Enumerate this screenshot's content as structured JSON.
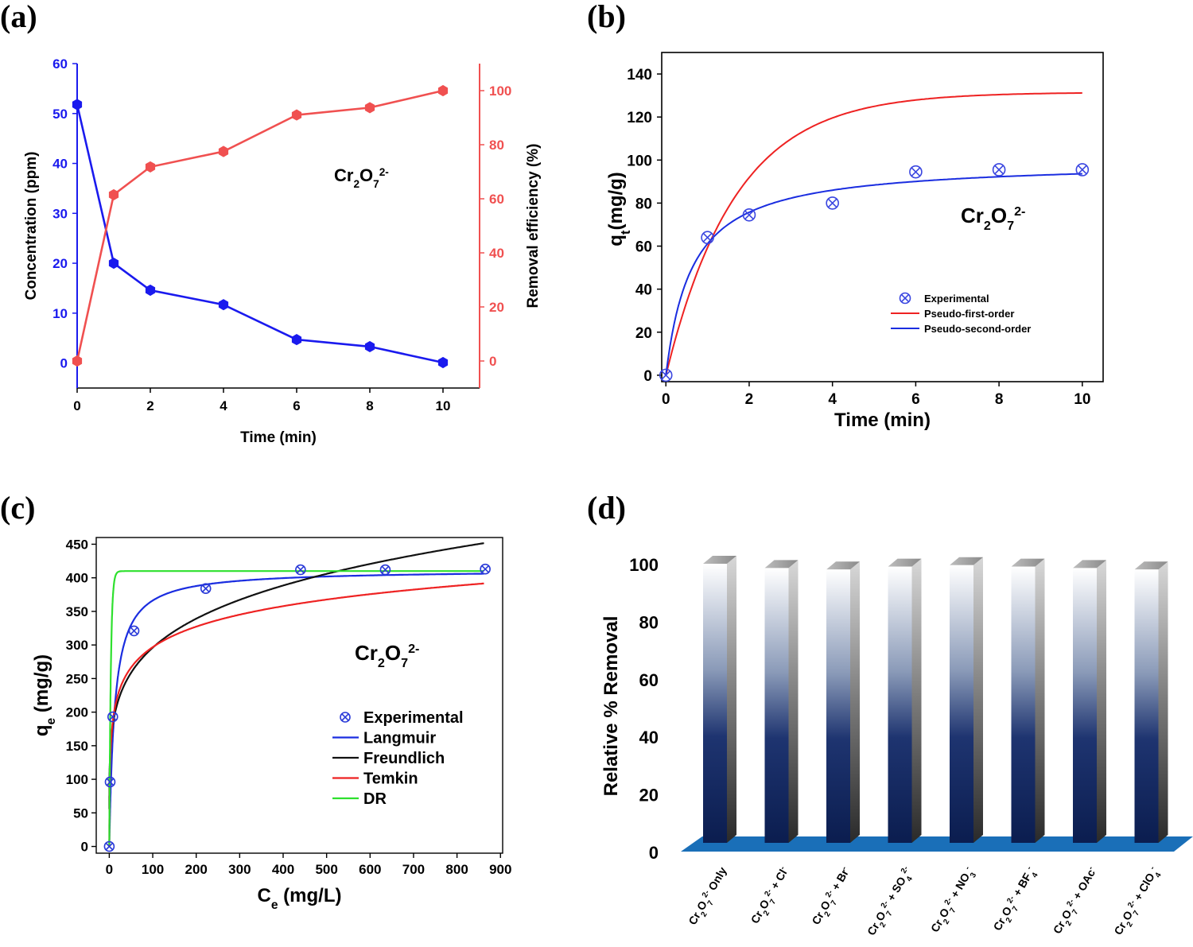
{
  "panel_labels": [
    "(a)",
    "(b)",
    "(c)",
    "(d)"
  ],
  "chart_data": [
    {
      "panel": "(a)",
      "type": "line",
      "annotation": {
        "base": "Cr",
        "s1": "2",
        "mid": "O",
        "s2": "7",
        "sup": "2-"
      },
      "xlabel": "Time (min)",
      "ylabel_left": "Concentration (ppm)",
      "ylabel_right": "Removal efficiency (%)",
      "xlim": [
        0,
        11
      ],
      "ylim_left": [
        -5,
        60
      ],
      "ylim_right": [
        -10,
        110
      ],
      "xticks": [
        0,
        2,
        4,
        6,
        8,
        10
      ],
      "yticks_left": [
        0,
        10,
        20,
        30,
        40,
        50,
        60
      ],
      "yticks_right": [
        0,
        20,
        40,
        60,
        80,
        100
      ],
      "colors": {
        "left": "#1a1aee",
        "right": "#f05050"
      },
      "series": [
        {
          "axis": "left",
          "x": [
            0,
            1,
            2,
            4,
            6,
            8,
            10
          ],
          "y": [
            51.8,
            20.0,
            14.6,
            11.7,
            4.7,
            3.3,
            0.1
          ]
        },
        {
          "axis": "right",
          "x": [
            0,
            1,
            2,
            4,
            6,
            8,
            10
          ],
          "y": [
            0,
            61.5,
            71.8,
            77.5,
            91.0,
            93.7,
            100
          ]
        }
      ]
    },
    {
      "panel": "(b)",
      "type": "scatter",
      "annotation": {
        "base": "Cr",
        "s1": "2",
        "mid": "O",
        "s2": "7",
        "sup": "2-"
      },
      "xlabel": "Time (min)",
      "ylabel": {
        "main": "q",
        "sub": "t",
        "rest": "(mg/g)"
      },
      "xlim": [
        -0.1,
        10.5
      ],
      "ylim": [
        -3,
        150
      ],
      "xticks": [
        0,
        2,
        4,
        6,
        8,
        10
      ],
      "yticks": [
        0,
        20,
        40,
        60,
        80,
        100,
        120,
        140
      ],
      "legend_position": "lower-center",
      "series": [
        {
          "name": "Experimental",
          "kind": "points",
          "color": "#3a46e0",
          "x": [
            0,
            1,
            2,
            4,
            6,
            8,
            10
          ],
          "y": [
            0,
            64,
            74.5,
            80,
            94.5,
            95.5,
            95.5
          ]
        },
        {
          "name": "Pseudo-first-order",
          "kind": "fit",
          "model": "pfo",
          "color": "#ee2222",
          "qe": 131.5,
          "k": 0.6
        },
        {
          "name": "Pseudo-second-order",
          "kind": "fit",
          "model": "pso",
          "color": "#1a2de0",
          "qe": 99.5,
          "k": 0.016
        }
      ]
    },
    {
      "panel": "(c)",
      "type": "scatter",
      "annotation": {
        "base": "Cr",
        "s1": "2",
        "mid": "O",
        "s2": "7",
        "sup": "2-"
      },
      "xlabel": {
        "main": "C",
        "sub": "e",
        "rest": " (mg/L)"
      },
      "ylabel": {
        "main": "q",
        "sub": "e",
        "rest": " (mg/g)"
      },
      "xlim": [
        -30,
        905
      ],
      "ylim": [
        -10,
        460
      ],
      "xticks": [
        0,
        100,
        200,
        300,
        400,
        500,
        600,
        700,
        800,
        900
      ],
      "yticks": [
        0,
        50,
        100,
        150,
        200,
        250,
        300,
        350,
        400,
        450
      ],
      "legend_position": "lower-center",
      "series": [
        {
          "name": "Experimental",
          "kind": "points",
          "color": "#2a3ad8",
          "x": [
            0,
            2,
            8,
            57,
            222,
            440,
            635,
            865
          ],
          "y": [
            0,
            96,
            193,
            321,
            384,
            412,
            412,
            413
          ]
        },
        {
          "name": "Langmuir",
          "kind": "fit",
          "model": "langmuir",
          "color": "#1a2de0",
          "qmax": 412,
          "K": 0.08
        },
        {
          "name": "Freundlich",
          "kind": "fit",
          "model": "freundlich",
          "color": "#111111",
          "Kf": 120,
          "n": 5.1
        },
        {
          "name": "Temkin",
          "kind": "fit",
          "model": "temkin",
          "color": "#ee2222",
          "B": 44,
          "A": 8.5
        },
        {
          "name": "DR",
          "kind": "fit",
          "model": "dr",
          "color": "#2ee02e",
          "qmax": 410,
          "scale": 3.5
        }
      ]
    },
    {
      "panel": "(d)",
      "type": "bar",
      "ylabel": "Relative % Removal",
      "ylim": [
        0,
        100
      ],
      "yticks": [
        0,
        20,
        40,
        60,
        80,
        100
      ],
      "categories": [
        {
          "base": "Cr",
          "s1": "2",
          "mid": "O",
          "s2": "7",
          "sup": "2-",
          "tail": " Only",
          "ion": "",
          "ionsub": "",
          "ionsup": ""
        },
        {
          "base": "Cr",
          "s1": "2",
          "mid": "O",
          "s2": "7",
          "sup": "2-",
          "tail": " + ",
          "ion": "Cl",
          "ionsub": "",
          "ionsup": "-"
        },
        {
          "base": "Cr",
          "s1": "2",
          "mid": "O",
          "s2": "7",
          "sup": "2-",
          "tail": " + ",
          "ion": "Br",
          "ionsub": "",
          "ionsup": "-"
        },
        {
          "base": "Cr",
          "s1": "2",
          "mid": "O",
          "s2": "7",
          "sup": "2-",
          "tail": " + ",
          "ion": "SO",
          "ionsub": "4",
          "ionsup": "2-"
        },
        {
          "base": "Cr",
          "s1": "2",
          "mid": "O",
          "s2": "7",
          "sup": "2-",
          "tail": " + ",
          "ion": "NO",
          "ionsub": "3",
          "ionsup": "-"
        },
        {
          "base": "Cr",
          "s1": "2",
          "mid": "O",
          "s2": "7",
          "sup": "2-",
          "tail": " + ",
          "ion": "BF",
          "ionsub": "4",
          "ionsup": "-"
        },
        {
          "base": "Cr",
          "s1": "2",
          "mid": "O",
          "s2": "7",
          "sup": "2-",
          "tail": " + ",
          "ion": "OAc",
          "ionsub": "",
          "ionsup": "-"
        },
        {
          "base": "Cr",
          "s1": "2",
          "mid": "O",
          "s2": "7",
          "sup": "2-",
          "tail": " + ",
          "ion": "ClO",
          "ionsub": "4",
          "ionsup": "-"
        }
      ],
      "values": [
        100,
        98.5,
        98,
        99,
        99.5,
        99,
        98.5,
        98
      ],
      "colors": {
        "bar_top": "#ffffff",
        "bar_bottom": "#0b1d4f",
        "floor": "#1a6fb8"
      }
    }
  ]
}
